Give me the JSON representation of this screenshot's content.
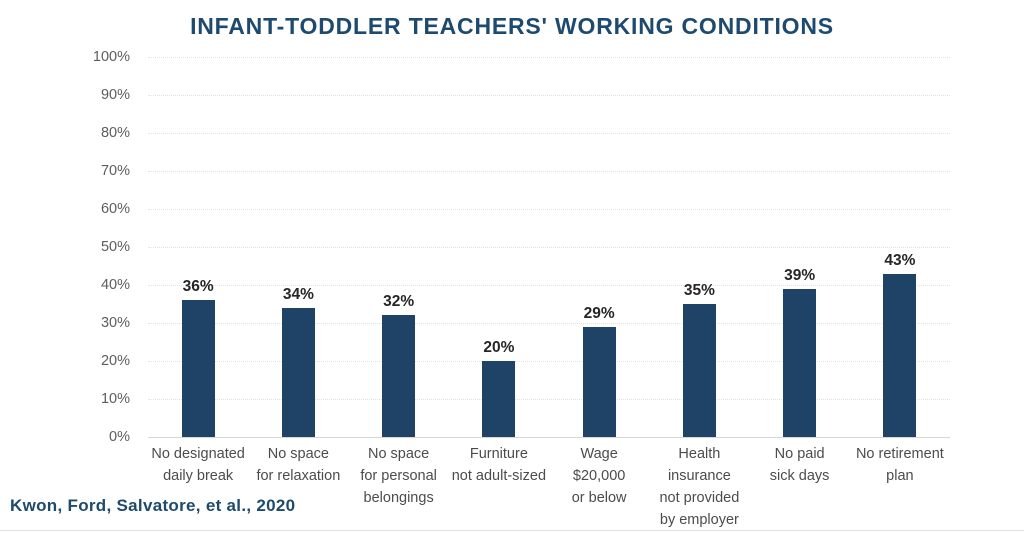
{
  "header": {
    "title": "INFANT-TODDLER TEACHERS' WORKING CONDITIONS"
  },
  "footer": {
    "citation": "Kwon, Ford, Salvatore, et al., 2020"
  },
  "colors": {
    "bar": "#1e4366",
    "title_navy": "#1d4a6e"
  },
  "chart_data": {
    "type": "bar",
    "title": "INFANT-TODDLER TEACHERS' WORKING CONDITIONS",
    "categories": [
      "No designated\ndaily break",
      "No space\nfor relaxation",
      "No space\nfor personal\nbelongings",
      "Furniture\nnot adult-sized",
      "Wage\n$20,000\nor below",
      "Health insurance\nnot provided\nby employer",
      "No paid\nsick days",
      "No retirement\nplan"
    ],
    "values": [
      36,
      34,
      32,
      20,
      29,
      35,
      39,
      43
    ],
    "value_labels": [
      "36%",
      "34%",
      "32%",
      "20%",
      "29%",
      "35%",
      "39%",
      "43%"
    ],
    "xlabel": "",
    "ylabel": "",
    "ylim": [
      0,
      100
    ],
    "y_ticks": [
      0,
      10,
      20,
      30,
      40,
      50,
      60,
      70,
      80,
      90,
      100
    ],
    "y_tick_labels": [
      "0%",
      "10%",
      "20%",
      "30%",
      "40%",
      "50%",
      "60%",
      "70%",
      "80%",
      "90%",
      "100%"
    ],
    "grid": true,
    "legend": false,
    "bar_color": "#1e4366",
    "citation": "Kwon, Ford, Salvatore, et al., 2020"
  }
}
